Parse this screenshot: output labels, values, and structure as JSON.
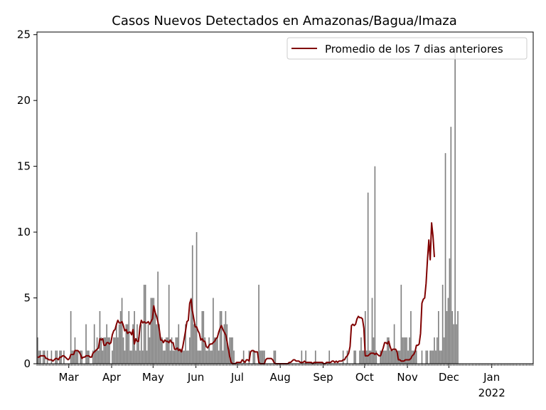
{
  "chart_data": {
    "type": "bar",
    "title": "Casos Nuevos Detectados en Amazonas/Bagua/Imaza",
    "xlabel": "",
    "ylabel": "",
    "ylim": [
      0,
      25.2
    ],
    "yticks": [
      0,
      5,
      10,
      15,
      20,
      25
    ],
    "x_start": "2021-02-06",
    "x_end": "2022-01-31",
    "xticks": [
      {
        "date": "2021-03-01",
        "label": "Mar"
      },
      {
        "date": "2021-04-01",
        "label": "Apr"
      },
      {
        "date": "2021-05-01",
        "label": "May"
      },
      {
        "date": "2021-06-01",
        "label": "Jun"
      },
      {
        "date": "2021-07-01",
        "label": "Jul"
      },
      {
        "date": "2021-08-01",
        "label": "Aug"
      },
      {
        "date": "2021-09-01",
        "label": "Sep"
      },
      {
        "date": "2021-10-01",
        "label": "Oct"
      },
      {
        "date": "2021-11-01",
        "label": "Nov"
      },
      {
        "date": "2021-12-01",
        "label": "Dec"
      },
      {
        "date": "2022-01-01",
        "label": "Jan",
        "sublabel": "2022"
      }
    ],
    "grid": false,
    "legend_position": "top-right",
    "bar_color": "#808080",
    "line_color": "#800000",
    "series": [
      {
        "name": "",
        "type": "bar",
        "values": [
          2,
          1,
          1,
          0,
          1,
          1,
          0,
          1,
          0,
          0,
          1,
          0,
          0,
          1,
          1,
          0,
          1,
          1,
          0,
          1,
          0,
          0,
          0,
          0,
          4,
          1,
          1,
          2,
          1,
          1,
          0,
          1,
          1,
          0,
          0,
          3,
          1,
          1,
          0,
          0,
          1,
          3,
          1,
          2,
          1,
          4,
          2,
          1,
          2,
          2,
          3,
          2,
          2,
          0,
          1,
          2,
          2,
          3,
          2,
          3,
          4,
          5,
          2,
          1,
          3,
          3,
          4,
          1,
          1,
          3,
          4,
          1,
          3,
          2,
          1,
          3,
          1,
          6,
          6,
          1,
          3,
          2,
          5,
          5,
          5,
          4,
          3,
          7,
          3,
          2,
          2,
          1,
          1,
          2,
          2,
          6,
          1,
          2,
          1,
          1,
          2,
          2,
          3,
          1,
          1,
          1,
          1,
          3,
          1,
          1,
          2,
          5,
          9,
          3,
          3,
          10,
          1,
          1,
          1,
          4,
          4,
          2,
          1,
          1,
          2,
          1,
          1,
          5,
          2,
          2,
          2,
          1,
          4,
          4,
          1,
          3,
          4,
          3,
          1,
          2,
          2,
          2,
          1,
          0,
          0,
          0,
          0,
          0,
          0,
          1,
          0,
          0,
          0,
          1,
          0,
          0,
          1,
          1,
          0,
          0,
          6,
          1,
          1,
          1,
          1,
          0,
          0,
          0,
          0,
          0,
          0,
          1,
          1,
          0,
          0,
          0,
          0,
          0,
          0,
          0,
          0,
          0,
          0,
          0,
          0,
          0,
          0,
          0,
          0,
          0,
          0,
          1,
          0,
          0,
          1,
          0,
          0,
          0,
          0,
          0,
          0,
          1,
          0,
          0,
          0,
          0,
          0,
          0,
          0,
          0,
          0,
          1,
          0,
          0,
          0,
          0,
          0,
          0,
          0,
          0,
          0,
          1,
          0,
          0,
          1,
          0,
          0,
          0,
          0,
          1,
          1,
          0,
          0,
          1,
          2,
          1,
          1,
          4,
          1,
          13,
          1,
          1,
          5,
          2,
          15,
          1,
          0,
          0,
          1,
          1,
          1,
          1,
          1,
          2,
          2,
          1,
          1,
          1,
          3,
          1,
          1,
          1,
          1,
          6,
          2,
          2,
          2,
          2,
          1,
          2,
          4,
          1,
          1,
          1,
          1,
          0,
          0,
          0,
          1,
          0,
          0,
          1,
          1,
          0,
          1,
          1,
          1,
          2,
          1,
          2,
          4,
          1,
          1,
          6,
          2,
          16,
          4,
          5,
          8,
          18,
          4,
          3,
          24,
          3,
          4
        ]
      },
      {
        "name": "Promedio de los 7 dias anteriores",
        "type": "line",
        "values": [
          0.5,
          0.5,
          0.6,
          0.6,
          0.6,
          0.6,
          0.4,
          0.4,
          0.3,
          0.3,
          0.3,
          0.2,
          0.3,
          0.4,
          0.4,
          0.3,
          0.5,
          0.5,
          0.6,
          0.6,
          0.5,
          0.4,
          0.3,
          0.4,
          0.7,
          0.7,
          0.7,
          1.0,
          1.0,
          1.0,
          0.9,
          0.7,
          0.4,
          0.5,
          0.5,
          0.6,
          0.6,
          0.6,
          0.5,
          0.5,
          0.8,
          0.9,
          1.0,
          1.1,
          1.2,
          1.9,
          1.8,
          1.9,
          1.4,
          1.4,
          1.6,
          1.6,
          1.5,
          1.6,
          2.2,
          2.5,
          2.6,
          3.0,
          3.3,
          3.1,
          3.1,
          3.2,
          2.9,
          2.5,
          2.6,
          2.3,
          2.4,
          2.4,
          2.2,
          2.6,
          1.5,
          1.9,
          1.7,
          1.7,
          2.8,
          3.3,
          3.1,
          3.2,
          3.1,
          3.1,
          3.2,
          3.0,
          3.2,
          3.4,
          4.4,
          3.9,
          3.6,
          3.2,
          2.6,
          1.8,
          1.8,
          1.6,
          1.8,
          1.7,
          1.7,
          1.6,
          1.8,
          1.6,
          1.6,
          1.1,
          1.1,
          1.2,
          1.0,
          1.1,
          0.9,
          1.3,
          1.9,
          2.5,
          3.2,
          3.3,
          4.6,
          4.9,
          4.0,
          3.4,
          2.8,
          2.8,
          2.5,
          2.3,
          1.8,
          1.9,
          1.7,
          1.7,
          1.3,
          1.2,
          1.4,
          1.5,
          1.5,
          1.6,
          1.7,
          1.9,
          2.0,
          2.4,
          2.7,
          2.9,
          2.6,
          2.4,
          2.2,
          1.7,
          1.1,
          0.5,
          0.1,
          0.0,
          0.0,
          0.0,
          0.1,
          0.1,
          0.1,
          0.1,
          0.3,
          0.2,
          0.1,
          0.3,
          0.3,
          0.2,
          0.9,
          1.0,
          1.0,
          0.9,
          0.9,
          0.9,
          0.1,
          0.0,
          0.0,
          0.0,
          0.0,
          0.3,
          0.4,
          0.4,
          0.4,
          0.4,
          0.3,
          0.1,
          0.0,
          0.0,
          0.0,
          0.0,
          0.0,
          0.0,
          0.0,
          0.0,
          0.0,
          0.0,
          0.1,
          0.1,
          0.2,
          0.3,
          0.3,
          0.2,
          0.2,
          0.2,
          0.1,
          0.1,
          0.1,
          0.2,
          0.1,
          0.1,
          0.1,
          0.1,
          0.1,
          0.0,
          0.1,
          0.1,
          0.1,
          0.1,
          0.1,
          0.1,
          0.1,
          0.0,
          0.0,
          0.1,
          0.1,
          0.1,
          0.1,
          0.2,
          0.2,
          0.1,
          0.2,
          0.1,
          0.2,
          0.2,
          0.2,
          0.3,
          0.3,
          0.5,
          0.6,
          0.8,
          1.3,
          2.9,
          3.0,
          2.9,
          3.0,
          3.4,
          3.6,
          3.5,
          3.5,
          3.4,
          2.7,
          0.6,
          0.6,
          0.6,
          0.7,
          0.8,
          0.8,
          0.8,
          0.7,
          0.8,
          0.7,
          0.6,
          0.6,
          0.9,
          1.2,
          1.6,
          1.6,
          1.5,
          1.7,
          1.3,
          1.0,
          1.1,
          1.1,
          1.1,
          0.9,
          0.3,
          0.3,
          0.2,
          0.2,
          0.2,
          0.3,
          0.3,
          0.3,
          0.3,
          0.4,
          0.6,
          0.7,
          0.9,
          1.4,
          1.4,
          1.5,
          2.3,
          4.6,
          4.9,
          5.0,
          6.1,
          7.9,
          9.4,
          7.9,
          10.7,
          9.7,
          8.1
        ]
      }
    ]
  }
}
